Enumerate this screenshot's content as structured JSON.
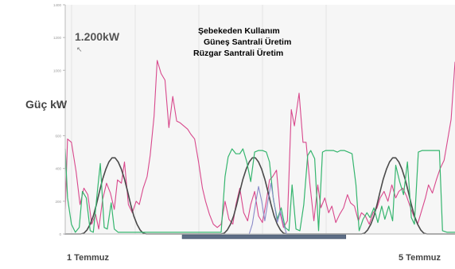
{
  "colors": {
    "plot_background": "#f6f6f6",
    "grid": "#e4e4e4",
    "axis": "#b9b9b9",
    "scrollbar": "#5d6d85"
  },
  "chart_data": {
    "type": "line",
    "ylabel": "Güç kW",
    "annotation": "1.200kW",
    "yticks": [
      0,
      200,
      400,
      600,
      800,
      1000,
      1200,
      1400
    ],
    "ylim": [
      0,
      1400
    ],
    "xlim": [
      0,
      500
    ],
    "grid": true,
    "legend_position": "top-center",
    "x_category_labels": [
      {
        "label": "1 Temmuz",
        "x": 0
      },
      {
        "label": "5 Temmuz",
        "x": 500
      }
    ],
    "series": [
      {
        "name": "Şebekeden Kullanım",
        "color": "#d8488c",
        "width": 1.1,
        "points": [
          [
            0,
            150
          ],
          [
            3,
            580
          ],
          [
            8,
            560
          ],
          [
            14,
            380
          ],
          [
            19,
            180
          ],
          [
            24,
            280
          ],
          [
            29,
            240
          ],
          [
            34,
            60
          ],
          [
            39,
            120
          ],
          [
            43,
            30
          ],
          [
            48,
            210
          ],
          [
            53,
            310
          ],
          [
            58,
            250
          ],
          [
            63,
            150
          ],
          [
            67,
            330
          ],
          [
            72,
            310
          ],
          [
            76,
            440
          ],
          [
            81,
            180
          ],
          [
            86,
            130
          ],
          [
            91,
            200
          ],
          [
            95,
            180
          ],
          [
            100,
            280
          ],
          [
            105,
            350
          ],
          [
            109,
            480
          ],
          [
            114,
            720
          ],
          [
            118,
            1060
          ],
          [
            123,
            980
          ],
          [
            128,
            940
          ],
          [
            133,
            650
          ],
          [
            138,
            840
          ],
          [
            143,
            690
          ],
          [
            147,
            680
          ],
          [
            152,
            660
          ],
          [
            157,
            640
          ],
          [
            161,
            610
          ],
          [
            166,
            580
          ],
          [
            171,
            440
          ],
          [
            176,
            280
          ],
          [
            180,
            200
          ],
          [
            185,
            120
          ],
          [
            190,
            60
          ],
          [
            195,
            40
          ],
          [
            200,
            60
          ],
          [
            205,
            200
          ],
          [
            210,
            90
          ],
          [
            215,
            60
          ],
          [
            219,
            180
          ],
          [
            224,
            280
          ],
          [
            229,
            130
          ],
          [
            234,
            80
          ],
          [
            238,
            180
          ],
          [
            243,
            260
          ],
          [
            248,
            110
          ],
          [
            253,
            70
          ],
          [
            258,
            200
          ],
          [
            262,
            330
          ],
          [
            266,
            350
          ],
          [
            271,
            390
          ],
          [
            276,
            120
          ],
          [
            280,
            40
          ],
          [
            285,
            80
          ],
          [
            290,
            760
          ],
          [
            294,
            660
          ],
          [
            300,
            860
          ],
          [
            305,
            560
          ],
          [
            309,
            560
          ],
          [
            314,
            300
          ],
          [
            319,
            80
          ],
          [
            324,
            300
          ],
          [
            328,
            160
          ],
          [
            333,
            220
          ],
          [
            338,
            130
          ],
          [
            342,
            170
          ],
          [
            347,
            70
          ],
          [
            352,
            120
          ],
          [
            357,
            160
          ],
          [
            362,
            240
          ],
          [
            366,
            190
          ],
          [
            371,
            170
          ],
          [
            376,
            80
          ],
          [
            380,
            130
          ],
          [
            385,
            110
          ],
          [
            390,
            60
          ],
          [
            395,
            130
          ],
          [
            400,
            160
          ],
          [
            404,
            220
          ],
          [
            409,
            260
          ],
          [
            414,
            200
          ],
          [
            419,
            300
          ],
          [
            424,
            220
          ],
          [
            428,
            260
          ],
          [
            433,
            280
          ],
          [
            438,
            230
          ],
          [
            443,
            160
          ],
          [
            448,
            100
          ],
          [
            452,
            60
          ],
          [
            457,
            140
          ],
          [
            462,
            220
          ],
          [
            466,
            300
          ],
          [
            471,
            250
          ],
          [
            476,
            330
          ],
          [
            481,
            400
          ],
          [
            486,
            450
          ],
          [
            490,
            560
          ],
          [
            495,
            700
          ],
          [
            500,
            1050
          ]
        ]
      },
      {
        "name": "Güneş Santrali Üretim",
        "color": "#4a4a4a",
        "width": 1.6,
        "points": [
          [
            0,
            0
          ],
          [
            20,
            0
          ],
          [
            24,
            5
          ],
          [
            28,
            25
          ],
          [
            32,
            60
          ],
          [
            36,
            110
          ],
          [
            40,
            180
          ],
          [
            44,
            260
          ],
          [
            48,
            335
          ],
          [
            52,
            395
          ],
          [
            56,
            440
          ],
          [
            60,
            465
          ],
          [
            64,
            465
          ],
          [
            68,
            440
          ],
          [
            72,
            395
          ],
          [
            76,
            335
          ],
          [
            80,
            260
          ],
          [
            84,
            180
          ],
          [
            88,
            110
          ],
          [
            92,
            60
          ],
          [
            96,
            25
          ],
          [
            100,
            5
          ],
          [
            104,
            0
          ],
          [
            200,
            0
          ],
          [
            204,
            5
          ],
          [
            208,
            25
          ],
          [
            212,
            60
          ],
          [
            216,
            110
          ],
          [
            220,
            180
          ],
          [
            224,
            260
          ],
          [
            228,
            335
          ],
          [
            232,
            395
          ],
          [
            236,
            440
          ],
          [
            240,
            465
          ],
          [
            244,
            465
          ],
          [
            248,
            440
          ],
          [
            252,
            395
          ],
          [
            256,
            335
          ],
          [
            260,
            260
          ],
          [
            264,
            180
          ],
          [
            268,
            110
          ],
          [
            272,
            60
          ],
          [
            276,
            25
          ],
          [
            280,
            5
          ],
          [
            284,
            0
          ],
          [
            380,
            0
          ],
          [
            384,
            5
          ],
          [
            388,
            25
          ],
          [
            392,
            60
          ],
          [
            396,
            110
          ],
          [
            400,
            180
          ],
          [
            404,
            260
          ],
          [
            408,
            335
          ],
          [
            412,
            395
          ],
          [
            416,
            440
          ],
          [
            420,
            465
          ],
          [
            424,
            465
          ],
          [
            428,
            440
          ],
          [
            432,
            395
          ],
          [
            436,
            335
          ],
          [
            440,
            260
          ],
          [
            444,
            180
          ],
          [
            448,
            110
          ],
          [
            452,
            60
          ],
          [
            456,
            25
          ],
          [
            460,
            5
          ],
          [
            464,
            0
          ],
          [
            500,
            0
          ]
        ]
      },
      {
        "name": "Rüzgar Santrali Üretim",
        "color": "#35b56e",
        "width": 1.2,
        "points": [
          [
            0,
            520
          ],
          [
            3,
            220
          ],
          [
            8,
            60
          ],
          [
            13,
            10
          ],
          [
            18,
            40
          ],
          [
            22,
            260
          ],
          [
            27,
            220
          ],
          [
            32,
            20
          ],
          [
            36,
            10
          ],
          [
            41,
            250
          ],
          [
            45,
            430
          ],
          [
            50,
            40
          ],
          [
            54,
            30
          ],
          [
            59,
            190
          ],
          [
            63,
            30
          ],
          [
            68,
            10
          ],
          [
            73,
            10
          ],
          [
            78,
            10
          ],
          [
            83,
            10
          ],
          [
            200,
            10
          ],
          [
            205,
            350
          ],
          [
            209,
            470
          ],
          [
            214,
            520
          ],
          [
            219,
            490
          ],
          [
            224,
            490
          ],
          [
            228,
            520
          ],
          [
            233,
            440
          ],
          [
            238,
            320
          ],
          [
            243,
            500
          ],
          [
            248,
            510
          ],
          [
            253,
            510
          ],
          [
            258,
            500
          ],
          [
            262,
            440
          ],
          [
            267,
            210
          ],
          [
            272,
            90
          ],
          [
            277,
            160
          ],
          [
            282,
            40
          ],
          [
            287,
            20
          ],
          [
            291,
            300
          ],
          [
            296,
            30
          ],
          [
            301,
            20
          ],
          [
            306,
            180
          ],
          [
            311,
            480
          ],
          [
            315,
            510
          ],
          [
            320,
            460
          ],
          [
            325,
            20
          ],
          [
            330,
            500
          ],
          [
            334,
            510
          ],
          [
            339,
            510
          ],
          [
            344,
            510
          ],
          [
            349,
            500
          ],
          [
            353,
            510
          ],
          [
            358,
            510
          ],
          [
            363,
            500
          ],
          [
            368,
            490
          ],
          [
            373,
            300
          ],
          [
            377,
            20
          ],
          [
            382,
            90
          ],
          [
            387,
            130
          ],
          [
            391,
            100
          ],
          [
            396,
            160
          ],
          [
            401,
            70
          ],
          [
            406,
            170
          ],
          [
            410,
            90
          ],
          [
            415,
            170
          ],
          [
            420,
            80
          ],
          [
            424,
            420
          ],
          [
            429,
            320
          ],
          [
            434,
            240
          ],
          [
            439,
            440
          ],
          [
            444,
            100
          ],
          [
            448,
            60
          ],
          [
            453,
            500
          ],
          [
            458,
            510
          ],
          [
            463,
            510
          ],
          [
            467,
            510
          ],
          [
            472,
            510
          ],
          [
            477,
            510
          ],
          [
            480,
            510
          ],
          [
            484,
            20
          ],
          [
            490,
            10
          ],
          [
            500,
            10
          ]
        ]
      },
      {
        "name": "",
        "color": "#8a8ac8",
        "width": 1.1,
        "points": [
          [
            0,
            0
          ],
          [
            236,
            0
          ],
          [
            240,
            60
          ],
          [
            244,
            180
          ],
          [
            248,
            290
          ],
          [
            252,
            200
          ],
          [
            256,
            80
          ],
          [
            260,
            200
          ],
          [
            264,
            310
          ],
          [
            268,
            190
          ],
          [
            272,
            70
          ],
          [
            276,
            140
          ],
          [
            280,
            60
          ],
          [
            284,
            0
          ],
          [
            500,
            0
          ]
        ]
      }
    ]
  },
  "scrollbar": {
    "range": [
      150,
      360
    ]
  }
}
